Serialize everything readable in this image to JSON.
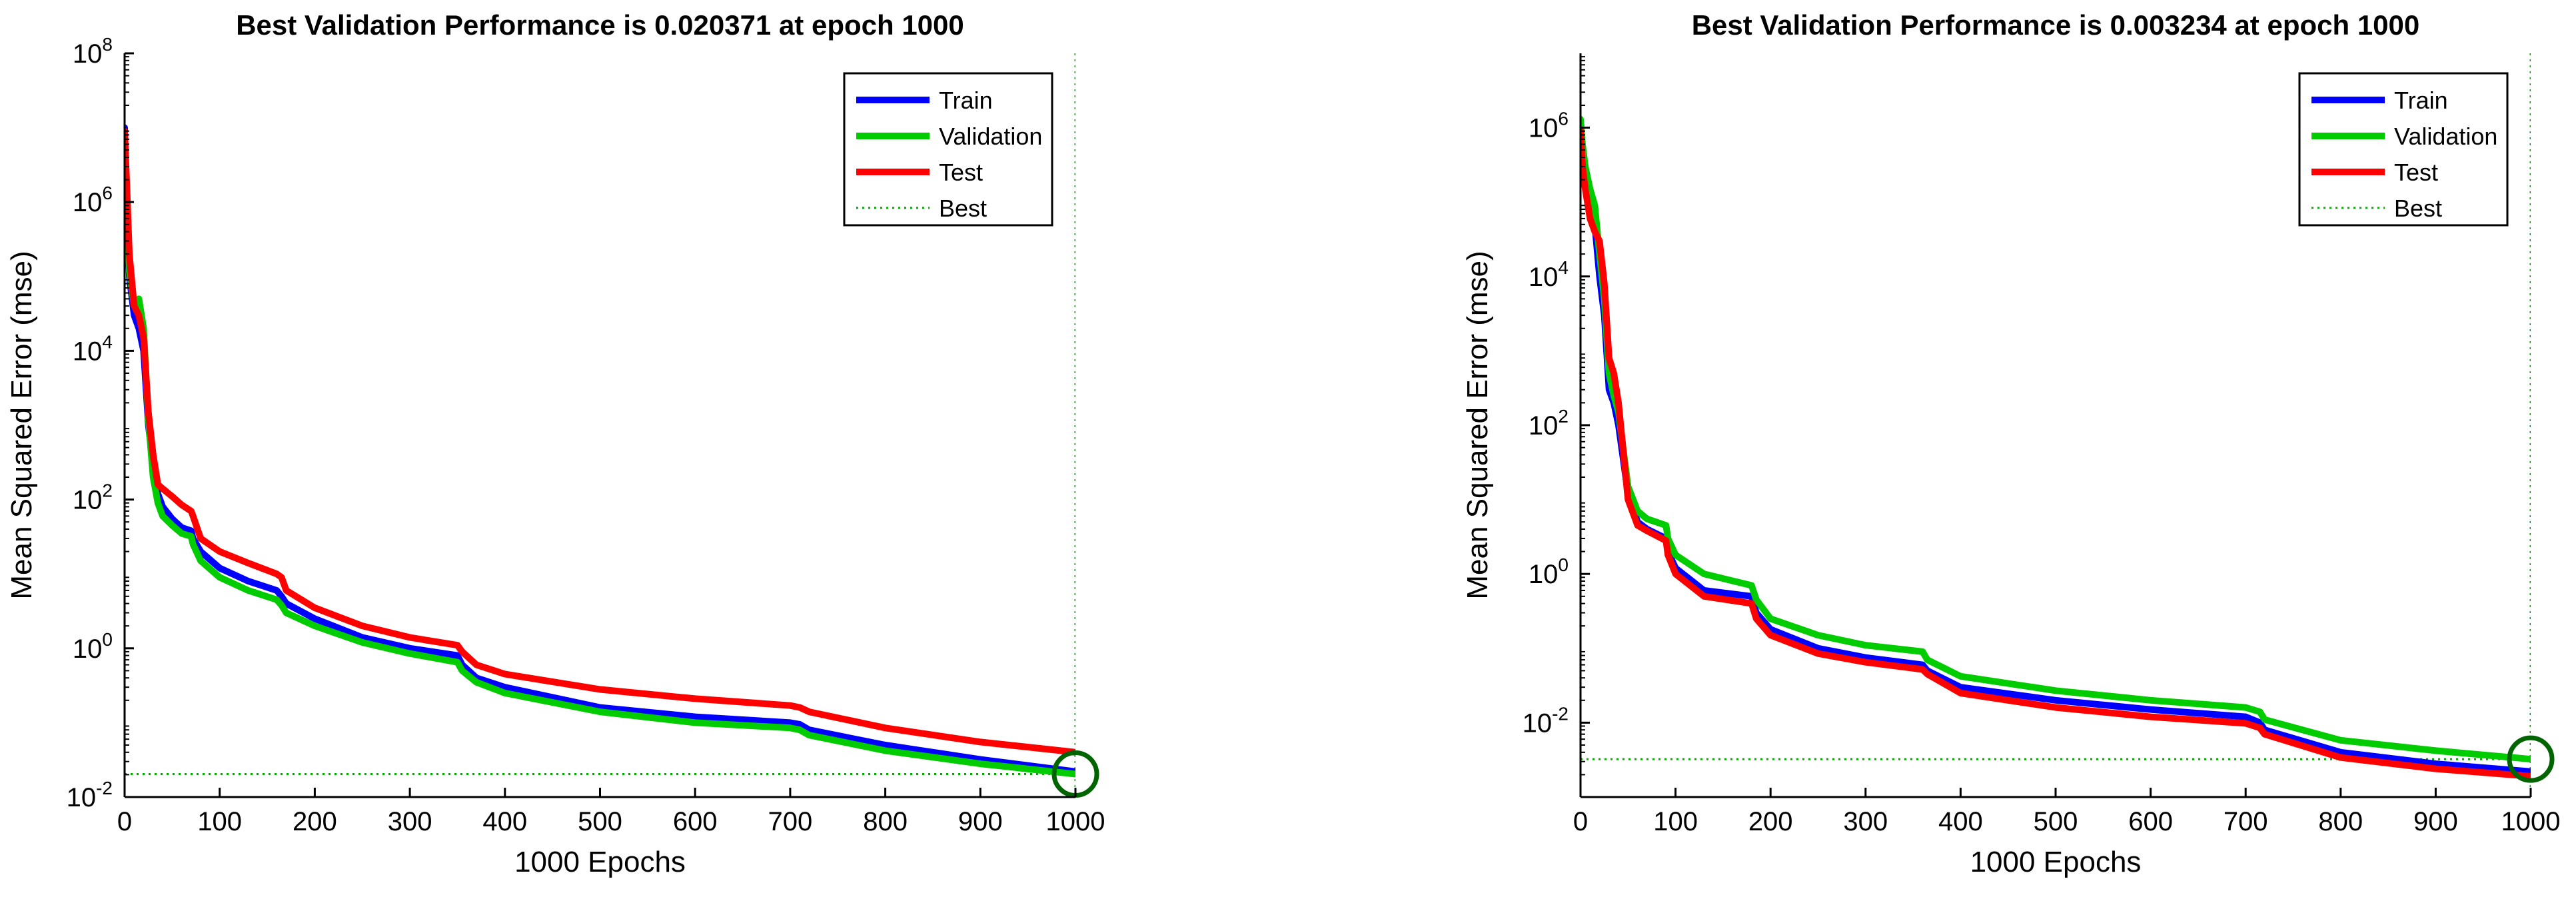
{
  "chart_data": [
    {
      "type": "line",
      "title": "Best Validation Performance is 0.020371 at epoch 1000",
      "xlabel": "1000 Epochs",
      "ylabel": "Mean Squared Error  (mse)",
      "yscale": "log",
      "xlim": [
        0,
        1000
      ],
      "ylim": [
        0.01,
        100000000
      ],
      "x_ticks": [
        "0",
        "100",
        "200",
        "300",
        "400",
        "500",
        "600",
        "700",
        "800",
        "900",
        "1000"
      ],
      "y_ticks": [
        {
          "base": "10",
          "exp": "8",
          "value": 100000000
        },
        {
          "base": "10",
          "exp": "6",
          "value": 1000000
        },
        {
          "base": "10",
          "exp": "4",
          "value": 10000
        },
        {
          "base": "10",
          "exp": "2",
          "value": 100
        },
        {
          "base": "10",
          "exp": "0",
          "value": 1
        },
        {
          "base": "10",
          "exp": "-2",
          "value": 0.01
        }
      ],
      "legend_position": "top-right",
      "best": {
        "epoch": 1000,
        "value": 0.020371
      },
      "series": [
        {
          "name": "Train",
          "color": "#0000ff",
          "x": [
            0,
            2,
            5,
            10,
            15,
            20,
            25,
            30,
            35,
            40,
            50,
            60,
            70,
            72,
            80,
            100,
            130,
            160,
            165,
            170,
            200,
            250,
            300,
            350,
            355,
            370,
            400,
            500,
            600,
            700,
            710,
            720,
            800,
            900,
            1000
          ],
          "y": [
            10000000,
            1000000,
            100000,
            30000,
            20000,
            10000,
            1000,
            300,
            120,
            80,
            55,
            42,
            38,
            30,
            20,
            12,
            8,
            6,
            5,
            4,
            2.5,
            1.4,
            1.0,
            0.8,
            0.6,
            0.4,
            0.3,
            0.16,
            0.12,
            0.1,
            0.095,
            0.08,
            0.05,
            0.032,
            0.022
          ]
        },
        {
          "name": "Validation",
          "color": "#00cc00",
          "x": [
            0,
            2,
            5,
            10,
            15,
            20,
            25,
            30,
            35,
            40,
            50,
            60,
            70,
            72,
            80,
            100,
            130,
            160,
            165,
            170,
            200,
            250,
            300,
            350,
            355,
            370,
            400,
            500,
            600,
            700,
            710,
            720,
            800,
            900,
            1000
          ],
          "y": [
            8000000,
            800000,
            120000,
            40000,
            50000,
            20000,
            1200,
            200,
            90,
            60,
            45,
            35,
            32,
            25,
            15,
            9,
            6,
            4.5,
            3.8,
            3,
            2,
            1.2,
            0.85,
            0.65,
            0.5,
            0.35,
            0.25,
            0.14,
            0.1,
            0.085,
            0.08,
            0.068,
            0.042,
            0.028,
            0.020371
          ]
        },
        {
          "name": "Test",
          "color": "#ff0000",
          "x": [
            0,
            2,
            5,
            10,
            15,
            20,
            25,
            30,
            35,
            40,
            50,
            60,
            70,
            72,
            80,
            100,
            130,
            160,
            165,
            170,
            200,
            250,
            300,
            350,
            355,
            370,
            400,
            500,
            600,
            700,
            710,
            720,
            800,
            900,
            1000
          ],
          "y": [
            9000000,
            2000000,
            200000,
            40000,
            30000,
            15000,
            1500,
            400,
            160,
            140,
            110,
            85,
            70,
            60,
            30,
            20,
            14,
            10,
            9,
            6,
            3.5,
            2,
            1.4,
            1.1,
            0.9,
            0.6,
            0.45,
            0.28,
            0.21,
            0.17,
            0.16,
            0.14,
            0.085,
            0.055,
            0.04
          ]
        }
      ]
    },
    {
      "type": "line",
      "title": "Best Validation Performance is 0.003234 at epoch 1000",
      "xlabel": "1000 Epochs",
      "ylabel": "Mean Squared Error  (mse)",
      "yscale": "log",
      "xlim": [
        0,
        1000
      ],
      "ylim": [
        0.001,
        10000000
      ],
      "x_ticks": [
        "0",
        "100",
        "200",
        "300",
        "400",
        "500",
        "600",
        "700",
        "800",
        "900",
        "1000"
      ],
      "y_ticks": [
        {
          "base": "10",
          "exp": "6",
          "value": 1000000
        },
        {
          "base": "10",
          "exp": "4",
          "value": 10000
        },
        {
          "base": "10",
          "exp": "2",
          "value": 100
        },
        {
          "base": "10",
          "exp": "0",
          "value": 1
        },
        {
          "base": "10",
          "exp": "-2",
          "value": 0.01
        }
      ],
      "legend_position": "top-right",
      "best": {
        "epoch": 1000,
        "value": 0.003234
      },
      "series": [
        {
          "name": "Train",
          "color": "#0000ff",
          "x": [
            0,
            2,
            5,
            10,
            15,
            20,
            25,
            30,
            35,
            40,
            50,
            60,
            70,
            90,
            92,
            100,
            130,
            180,
            185,
            200,
            250,
            300,
            360,
            365,
            400,
            500,
            600,
            700,
            715,
            720,
            800,
            900,
            1000
          ],
          "y": [
            800000,
            400000,
            200000,
            100000,
            50000,
            10000,
            3000,
            300,
            200,
            100,
            12,
            5,
            4,
            3,
            2,
            1.2,
            0.6,
            0.5,
            0.3,
            0.18,
            0.1,
            0.075,
            0.06,
            0.05,
            0.03,
            0.02,
            0.015,
            0.012,
            0.01,
            0.008,
            0.004,
            0.0028,
            0.0022
          ]
        },
        {
          "name": "Validation",
          "color": "#00cc00",
          "x": [
            0,
            2,
            5,
            10,
            15,
            20,
            25,
            30,
            35,
            40,
            50,
            60,
            70,
            90,
            92,
            100,
            130,
            180,
            185,
            200,
            250,
            300,
            360,
            365,
            400,
            500,
            600,
            700,
            715,
            720,
            800,
            900,
            1000
          ],
          "y": [
            1300000,
            600000,
            300000,
            150000,
            90000,
            20000,
            5000,
            500,
            250,
            150,
            15,
            7,
            5.5,
            4.5,
            3,
            1.8,
            1.0,
            0.7,
            0.45,
            0.25,
            0.15,
            0.11,
            0.09,
            0.07,
            0.042,
            0.027,
            0.02,
            0.016,
            0.014,
            0.011,
            0.0058,
            0.0042,
            0.003234
          ]
        },
        {
          "name": "Test",
          "color": "#ff0000",
          "x": [
            0,
            2,
            5,
            10,
            15,
            20,
            25,
            30,
            35,
            40,
            50,
            60,
            70,
            90,
            92,
            100,
            130,
            180,
            185,
            200,
            250,
            300,
            360,
            365,
            400,
            500,
            600,
            700,
            715,
            720,
            800,
            900,
            1000
          ],
          "y": [
            900000,
            300000,
            150000,
            60000,
            40000,
            30000,
            8000,
            800,
            500,
            200,
            10,
            4.5,
            3.8,
            2.8,
            1.8,
            1.0,
            0.5,
            0.4,
            0.25,
            0.15,
            0.085,
            0.065,
            0.052,
            0.045,
            0.025,
            0.016,
            0.012,
            0.0098,
            0.0085,
            0.007,
            0.0034,
            0.0024,
            0.0019
          ]
        }
      ]
    }
  ]
}
